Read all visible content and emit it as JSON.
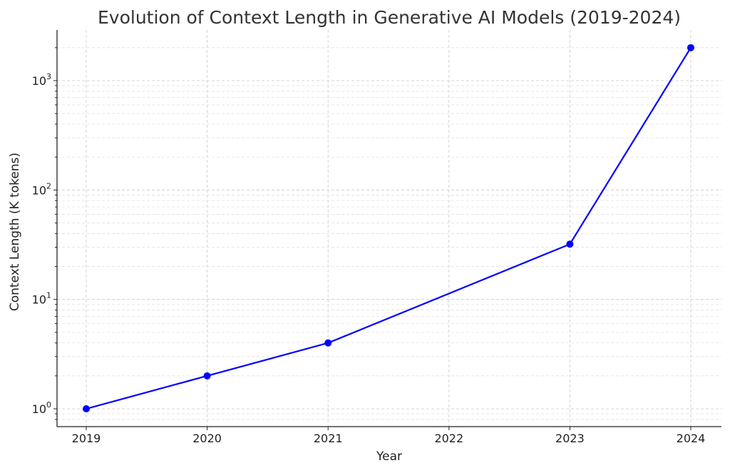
{
  "chart_data": {
    "type": "line",
    "title": "Evolution of Context Length in Generative AI Models (2019-2024)",
    "xlabel": "Year",
    "ylabel": "Context Length (K tokens)",
    "yscale": "log",
    "ylim": [
      0.8,
      2800
    ],
    "x": [
      2019,
      2020,
      2021,
      2023,
      2024
    ],
    "x_ticks": [
      2019,
      2020,
      2021,
      2022,
      2023,
      2024
    ],
    "y_ticks": [
      {
        "value": 1,
        "base": "10",
        "exp": "0"
      },
      {
        "value": 10,
        "base": "10",
        "exp": "1"
      },
      {
        "value": 100,
        "base": "10",
        "exp": "2"
      },
      {
        "value": 1000,
        "base": "10",
        "exp": "3"
      }
    ],
    "series": [
      {
        "values": [
          1,
          2,
          4,
          32,
          2000
        ],
        "color": "#0000ff",
        "marker": "circle"
      }
    ],
    "grid": true
  }
}
